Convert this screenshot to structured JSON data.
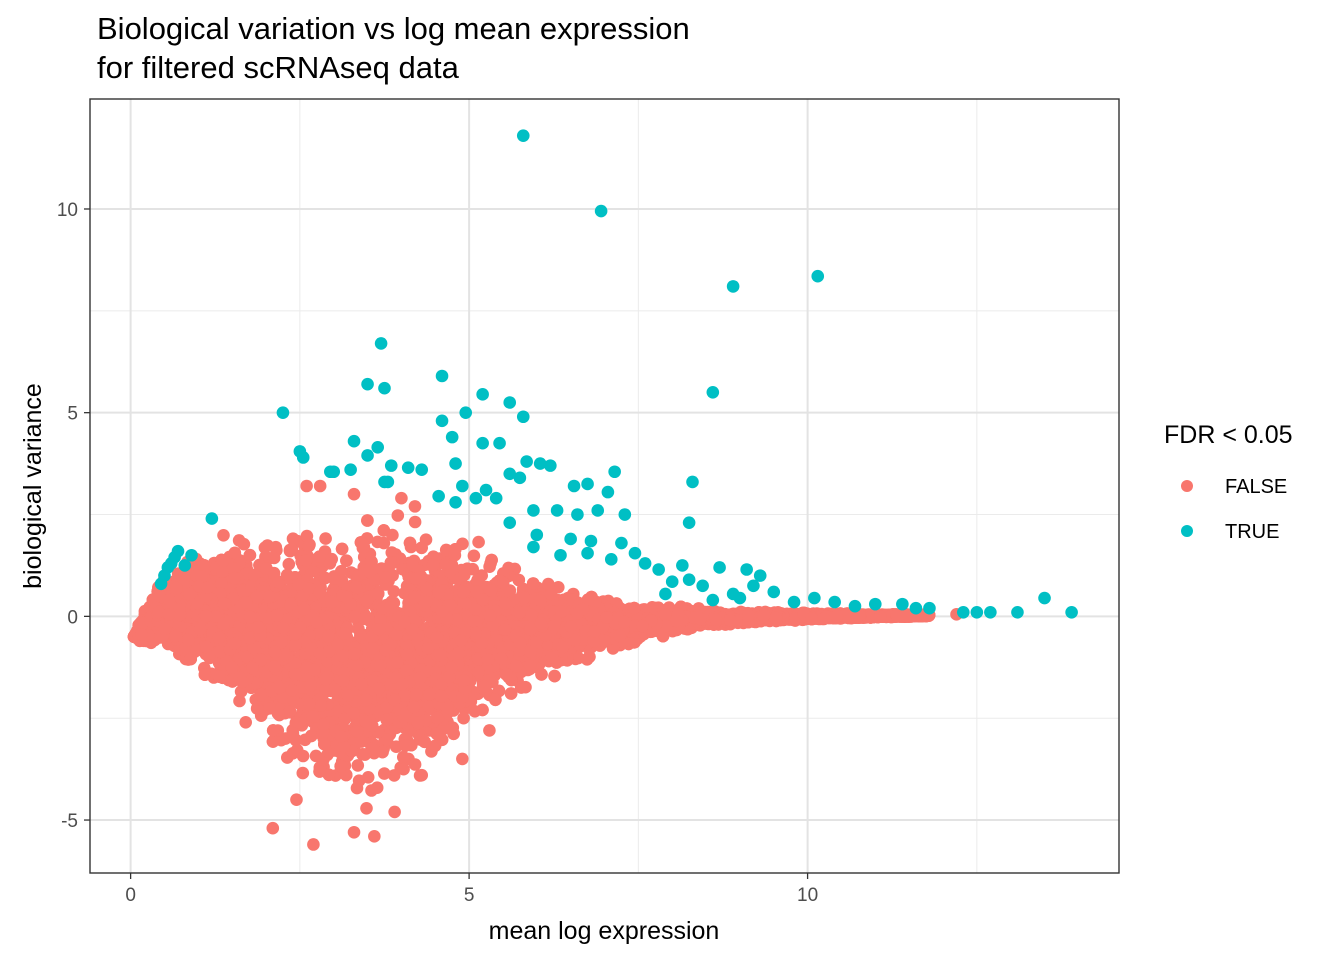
{
  "chart_data": {
    "type": "scatter",
    "title": "Biological variation vs log mean expression\nfor filtered scRNAseq data",
    "title_lines": [
      "Biological variation vs log mean expression",
      "for filtered scRNAseq data"
    ],
    "xlabel": "mean log expression",
    "ylabel": "biological variance",
    "xlim": [
      -0.6,
      14.6
    ],
    "ylim": [
      -6.3,
      12.7
    ],
    "x_ticks": [
      0,
      5,
      10
    ],
    "x_tick_labels": [
      "0",
      "5",
      "10"
    ],
    "y_ticks": [
      -5,
      0,
      5,
      10
    ],
    "y_tick_labels": [
      "-5",
      "0",
      "5",
      "10"
    ],
    "grid": true,
    "legend": {
      "title": "FDR < 0.05",
      "position": "right",
      "entries": [
        "FALSE",
        "TRUE"
      ]
    },
    "colors": {
      "FALSE": "#F8766D",
      "TRUE": "#00BFC4"
    },
    "series": [
      {
        "name": "FALSE",
        "color": "#F8766D",
        "description_of_cloud": "dense cloud of non-significant genes",
        "envelope": [
          [
            0.05,
            -0.5,
            -0.5
          ],
          [
            0.3,
            -0.9,
            0.6
          ],
          [
            0.6,
            -1.1,
            1.2
          ],
          [
            1.0,
            -1.6,
            1.8
          ],
          [
            1.5,
            -2.5,
            2.1
          ],
          [
            2.0,
            -3.5,
            2.4
          ],
          [
            2.5,
            -4.4,
            2.6
          ],
          [
            3.0,
            -5.0,
            2.7
          ],
          [
            3.5,
            -4.9,
            2.8
          ],
          [
            4.0,
            -4.7,
            2.8
          ],
          [
            4.5,
            -3.8,
            2.5
          ],
          [
            5.0,
            -3.0,
            2.0
          ],
          [
            5.5,
            -2.2,
            1.5
          ],
          [
            6.0,
            -1.8,
            1.1
          ],
          [
            6.5,
            -1.3,
            0.8
          ],
          [
            7.0,
            -1.0,
            0.55
          ],
          [
            7.5,
            -0.65,
            0.4
          ],
          [
            8.0,
            -0.45,
            0.3
          ],
          [
            8.5,
            -0.3,
            0.2
          ],
          [
            9.0,
            -0.2,
            0.15
          ],
          [
            10.0,
            -0.1,
            0.1
          ],
          [
            11.0,
            -0.04,
            0.06
          ],
          [
            11.8,
            0.0,
            0.05
          ]
        ],
        "outliers": [
          [
            2.7,
            -5.6
          ],
          [
            2.1,
            -5.2
          ],
          [
            3.6,
            -5.4
          ],
          [
            3.3,
            -5.3
          ],
          [
            2.45,
            -4.5
          ],
          [
            3.9,
            -4.8
          ],
          [
            2.6,
            3.2
          ],
          [
            2.8,
            3.2
          ],
          [
            3.3,
            3.0
          ],
          [
            4.0,
            2.9
          ],
          [
            4.2,
            2.7
          ],
          [
            12.2,
            0.05
          ],
          [
            1.7,
            -2.6
          ],
          [
            4.9,
            -3.5
          ],
          [
            5.3,
            -2.8
          ],
          [
            4.3,
            -3.9
          ]
        ]
      },
      {
        "name": "TRUE",
        "color": "#00BFC4",
        "points": [
          [
            5.8,
            11.8
          ],
          [
            6.95,
            9.95
          ],
          [
            8.9,
            8.1
          ],
          [
            10.15,
            8.35
          ],
          [
            3.7,
            6.7
          ],
          [
            4.6,
            5.9
          ],
          [
            3.5,
            5.7
          ],
          [
            3.75,
            5.6
          ],
          [
            8.6,
            5.5
          ],
          [
            5.2,
            5.45
          ],
          [
            5.6,
            5.25
          ],
          [
            2.25,
            5.0
          ],
          [
            4.95,
            5.0
          ],
          [
            5.8,
            4.9
          ],
          [
            4.6,
            4.8
          ],
          [
            4.75,
            4.4
          ],
          [
            3.3,
            4.3
          ],
          [
            5.2,
            4.25
          ],
          [
            5.45,
            4.25
          ],
          [
            3.65,
            4.15
          ],
          [
            2.5,
            4.05
          ],
          [
            2.55,
            3.9
          ],
          [
            3.5,
            3.95
          ],
          [
            4.8,
            3.75
          ],
          [
            5.85,
            3.8
          ],
          [
            6.05,
            3.75
          ],
          [
            6.2,
            3.7
          ],
          [
            3.85,
            3.7
          ],
          [
            4.1,
            3.65
          ],
          [
            3.25,
            3.6
          ],
          [
            3.0,
            3.55
          ],
          [
            2.95,
            3.55
          ],
          [
            4.3,
            3.6
          ],
          [
            5.6,
            3.5
          ],
          [
            7.15,
            3.55
          ],
          [
            5.75,
            3.4
          ],
          [
            3.75,
            3.3
          ],
          [
            3.8,
            3.3
          ],
          [
            8.3,
            3.3
          ],
          [
            6.55,
            3.2
          ],
          [
            6.75,
            3.25
          ],
          [
            4.9,
            3.2
          ],
          [
            5.25,
            3.1
          ],
          [
            7.05,
            3.05
          ],
          [
            5.4,
            2.9
          ],
          [
            5.1,
            2.9
          ],
          [
            4.55,
            2.95
          ],
          [
            4.8,
            2.8
          ],
          [
            5.95,
            2.6
          ],
          [
            6.3,
            2.6
          ],
          [
            6.6,
            2.5
          ],
          [
            6.9,
            2.6
          ],
          [
            7.3,
            2.5
          ],
          [
            8.25,
            2.3
          ],
          [
            1.2,
            2.4
          ],
          [
            5.6,
            2.3
          ],
          [
            6.0,
            2.0
          ],
          [
            6.5,
            1.9
          ],
          [
            6.8,
            1.85
          ],
          [
            7.25,
            1.8
          ],
          [
            5.95,
            1.7
          ],
          [
            6.35,
            1.5
          ],
          [
            6.75,
            1.55
          ],
          [
            7.1,
            1.4
          ],
          [
            7.45,
            1.55
          ],
          [
            7.6,
            1.3
          ],
          [
            7.8,
            1.15
          ],
          [
            8.15,
            1.25
          ],
          [
            8.0,
            0.85
          ],
          [
            8.7,
            1.2
          ],
          [
            9.1,
            1.15
          ],
          [
            9.3,
            1.0
          ],
          [
            8.25,
            0.9
          ],
          [
            8.45,
            0.75
          ],
          [
            8.9,
            0.55
          ],
          [
            9.2,
            0.75
          ],
          [
            9.5,
            0.6
          ],
          [
            9.8,
            0.35
          ],
          [
            10.1,
            0.45
          ],
          [
            10.4,
            0.35
          ],
          [
            10.7,
            0.25
          ],
          [
            11.0,
            0.3
          ],
          [
            11.4,
            0.3
          ],
          [
            11.6,
            0.2
          ],
          [
            11.8,
            0.2
          ],
          [
            12.3,
            0.1
          ],
          [
            12.5,
            0.1
          ],
          [
            12.7,
            0.1
          ],
          [
            13.1,
            0.1
          ],
          [
            13.5,
            0.45
          ],
          [
            13.9,
            0.1
          ],
          [
            0.5,
            1.0
          ],
          [
            0.6,
            1.3
          ],
          [
            0.7,
            1.6
          ],
          [
            0.45,
            0.8
          ],
          [
            0.55,
            1.2
          ],
          [
            0.9,
            1.5
          ],
          [
            0.8,
            1.25
          ],
          [
            0.65,
            1.45
          ],
          [
            7.9,
            0.55
          ],
          [
            8.6,
            0.4
          ],
          [
            9.0,
            0.45
          ]
        ]
      }
    ]
  }
}
